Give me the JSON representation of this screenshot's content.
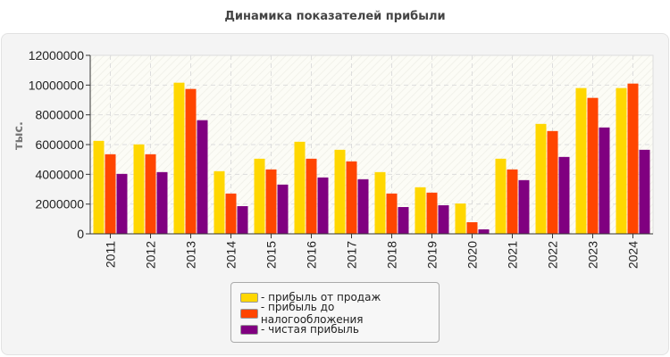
{
  "chart_data": {
    "type": "bar",
    "title": "Динамика показателей прибыли",
    "ylabel": "тыс.",
    "xlabel": "",
    "ylim": [
      0,
      12000000
    ],
    "yticks": [
      "0",
      "2000000",
      "4000000",
      "6000000",
      "8000000",
      "10000000",
      "12000000"
    ],
    "grid": true,
    "legend_position": "bottom",
    "categories": [
      "2011",
      "2012",
      "2013",
      "2014",
      "2015",
      "2016",
      "2017",
      "2018",
      "2019",
      "2020",
      "2021",
      "2022",
      "2023",
      "2024"
    ],
    "series": [
      {
        "name": "- прибыль от продаж",
        "color": "#ffd700",
        "values": [
          6250000,
          6010000,
          10160000,
          4210000,
          5050000,
          6190000,
          5650000,
          4150000,
          3130000,
          2040000,
          5050000,
          7390000,
          9800000,
          9800000
        ]
      },
      {
        "name": "- прибыль до налогообложения",
        "color": "#ff4500",
        "values": [
          5350000,
          5350000,
          9740000,
          2710000,
          4330000,
          5050000,
          4870000,
          2710000,
          2770000,
          780000,
          4330000,
          6910000,
          9140000,
          10100000
        ]
      },
      {
        "name": "- чистая прибыль",
        "color": "#800080",
        "values": [
          4030000,
          4150000,
          7640000,
          1860000,
          3310000,
          3790000,
          3670000,
          1800000,
          1920000,
          300000,
          3610000,
          5170000,
          7150000,
          5650000
        ]
      }
    ]
  }
}
